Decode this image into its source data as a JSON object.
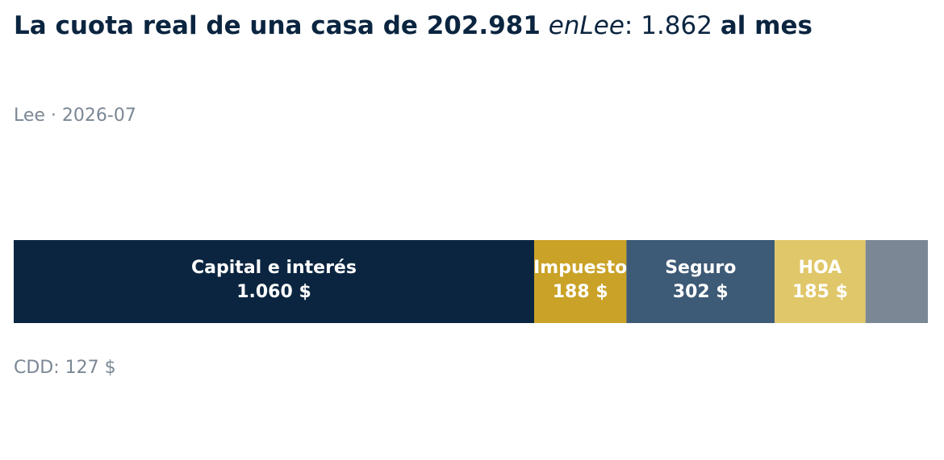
{
  "chart_data": {
    "type": "stacked-bar",
    "title": [
      "La cuota real de una casa de 202.981",
      "enLee",
      ": 1.862",
      "al mes"
    ],
    "subtitle": "Lee · 2026-07",
    "categories": [
      "Capital e interés",
      "Impuesto",
      "Seguro",
      "HOA",
      null
    ],
    "values": [
      1060,
      188,
      302,
      185,
      127
    ],
    "value_labels": [
      "1.060 $",
      "188 $",
      "302 $",
      "185 $",
      null
    ],
    "colors": [
      "#0b2540",
      "#c9a227",
      "#3d5a76",
      "#e0c76a",
      "#7b8794"
    ],
    "note": "CDD: 127 $"
  }
}
